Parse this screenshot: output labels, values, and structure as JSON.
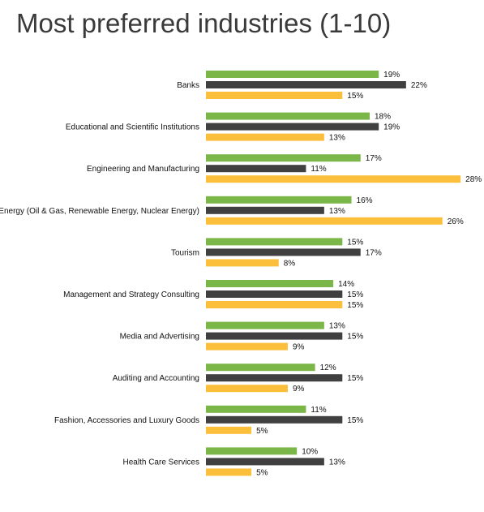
{
  "chart_data": {
    "type": "bar",
    "orientation": "horizontal",
    "title": "Most preferred industries (1-10)",
    "categories": [
      "Banks",
      "Educational and Scientific Institutions",
      "Engineering and Manufacturing",
      "Energy (Oil & Gas, Renewable Energy, Nuclear Energy)",
      "Tourism",
      "Management and Strategy Consulting",
      "Media and Advertising",
      "Auditing and Accounting",
      "Fashion, Accessories and Luxury Goods",
      "Health Care Services"
    ],
    "series": [
      {
        "color": "#7ab648",
        "values": [
          19,
          18,
          17,
          16,
          15,
          14,
          13,
          12,
          11,
          10
        ]
      },
      {
        "color": "#404040",
        "values": [
          22,
          19,
          11,
          13,
          17,
          15,
          15,
          15,
          15,
          13
        ]
      },
      {
        "color": "#fbbf3c",
        "values": [
          15,
          13,
          28,
          26,
          8,
          15,
          9,
          9,
          5,
          5
        ]
      }
    ],
    "value_suffix": "%",
    "xlim": [
      0,
      30
    ],
    "grid": false,
    "legend": "none"
  }
}
